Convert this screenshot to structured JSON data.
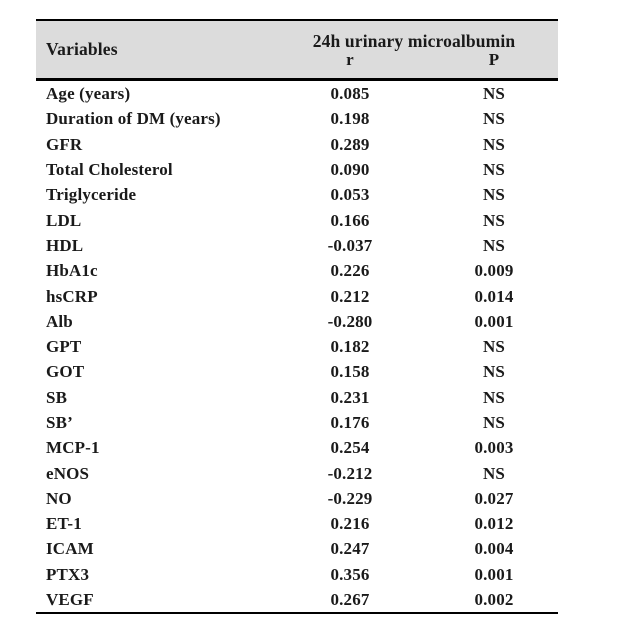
{
  "table": {
    "header": {
      "variables_label": "Variables",
      "group_label": "24h urinary microalbumin",
      "r_label": "r",
      "p_label": "P"
    },
    "rows": [
      {
        "variable": "Age (years)",
        "r": "0.085",
        "p": "NS"
      },
      {
        "variable": "Duration of DM (years)",
        "r": "0.198",
        "p": "NS"
      },
      {
        "variable": "GFR",
        "r": "0.289",
        "p": "NS"
      },
      {
        "variable": "Total Cholesterol",
        "r": "0.090",
        "p": "NS"
      },
      {
        "variable": "Triglyceride",
        "r": "0.053",
        "p": "NS"
      },
      {
        "variable": "LDL",
        "r": "0.166",
        "p": "NS"
      },
      {
        "variable": "HDL",
        "r": "-0.037",
        "p": "NS"
      },
      {
        "variable": "HbA1c",
        "r": "0.226",
        "p": "0.009"
      },
      {
        "variable": "hsCRP",
        "r": "0.212",
        "p": "0.014"
      },
      {
        "variable": "Alb",
        "r": "-0.280",
        "p": "0.001"
      },
      {
        "variable": "GPT",
        "r": "0.182",
        "p": "NS"
      },
      {
        "variable": "GOT",
        "r": "0.158",
        "p": "NS"
      },
      {
        "variable": "SB",
        "r": "0.231",
        "p": "NS"
      },
      {
        "variable": "SB’",
        "r": "0.176",
        "p": "NS"
      },
      {
        "variable": "MCP-1",
        "r": "0.254",
        "p": "0.003"
      },
      {
        "variable": "eNOS",
        "r": "-0.212",
        "p": "NS"
      },
      {
        "variable": "NO",
        "r": "-0.229",
        "p": "0.027"
      },
      {
        "variable": "ET-1",
        "r": "0.216",
        "p": "0.012"
      },
      {
        "variable": "ICAM",
        "r": "0.247",
        "p": "0.004"
      },
      {
        "variable": "PTX3",
        "r": "0.356",
        "p": "0.001"
      },
      {
        "variable": "VEGF",
        "r": "0.267",
        "p": "0.002"
      }
    ]
  },
  "colors": {
    "header_bg": "#dcdcdc",
    "border": "#000000",
    "text": "#1a1a1a",
    "page_bg": "#ffffff"
  }
}
